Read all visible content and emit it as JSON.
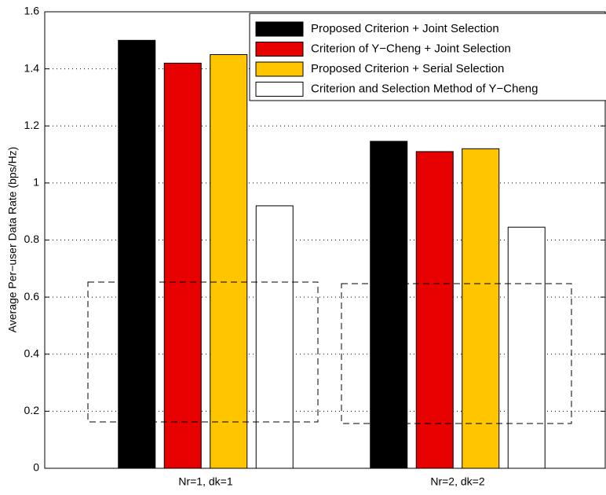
{
  "chart_data": {
    "type": "bar",
    "y_label": "Average Per−user Data Rate (bps/Hz)",
    "categories": [
      "Nr=1, dk=1",
      "Nr=2, dk=2"
    ],
    "series": [
      {
        "name": "Proposed Criterion + Joint Selection",
        "color": "#000000",
        "values": [
          1.5,
          1.146
        ]
      },
      {
        "name": "Criterion of Y−Cheng + Joint Selection",
        "color": "#e60000",
        "values": [
          1.42,
          1.11
        ]
      },
      {
        "name": "Proposed Criterion + Serial Selection",
        "color": "#ffc600",
        "values": [
          1.45,
          1.12
        ]
      },
      {
        "name": "Criterion and Selection Method of Y−Cheng",
        "color": "#ffffff",
        "values": [
          0.92,
          0.845
        ]
      }
    ],
    "ylim": [
      0,
      1.6
    ],
    "yticks": [
      0,
      0.2,
      0.4,
      0.6,
      0.8,
      1,
      1.2,
      1.4,
      1.6
    ],
    "grid": true,
    "legend": "top-right"
  }
}
